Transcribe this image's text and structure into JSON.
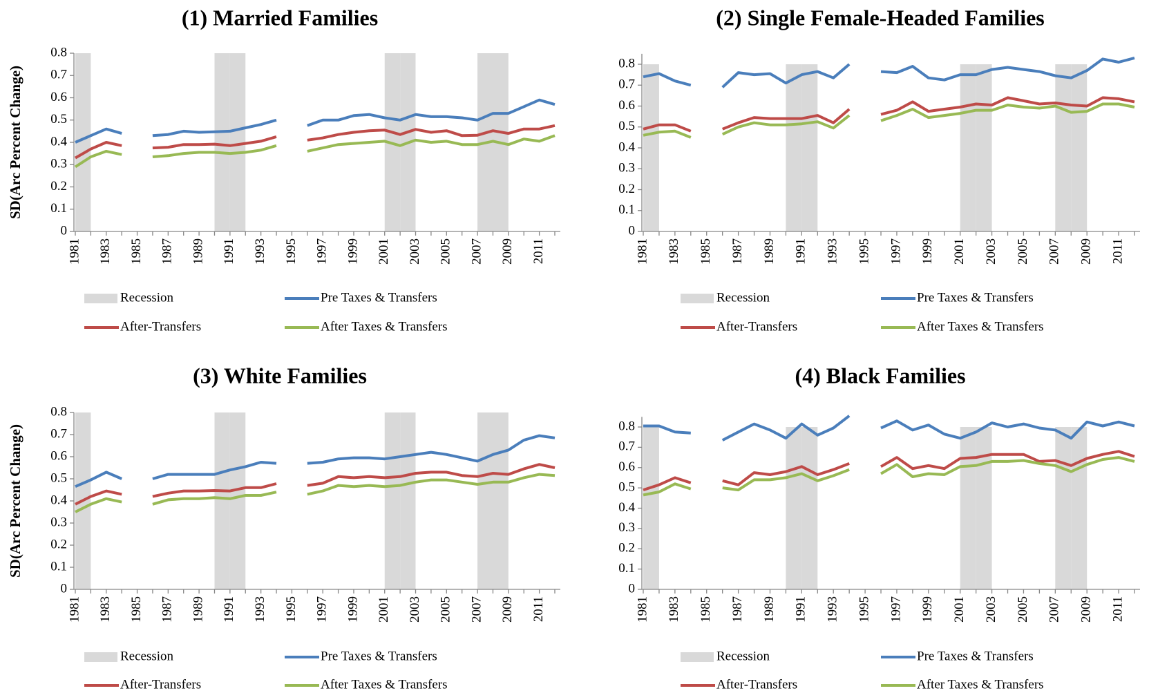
{
  "chart_data": [
    {
      "type": "line",
      "title": "(1) Married Families",
      "y_label": "SD(Arc Percent Change)",
      "categories": [
        "1981",
        null,
        "1983",
        null,
        "1985",
        null,
        "1987",
        null,
        "1989",
        null,
        "1991",
        null,
        "1993",
        null,
        "1995",
        null,
        "1997",
        null,
        "1999",
        null,
        "2001",
        null,
        "2003",
        null,
        "2005",
        null,
        "2007",
        null,
        "2009",
        null,
        "2011",
        null
      ],
      "ylim": [
        0,
        0.8
      ],
      "yticks": [
        0,
        0.1,
        0.2,
        0.3,
        0.4,
        0.5,
        0.6,
        0.7,
        0.8
      ],
      "series": [
        {
          "name": "Recession",
          "type": "bar",
          "color": "#d9d9d9",
          "values": [
            0.8,
            null,
            null,
            null,
            null,
            null,
            null,
            null,
            null,
            0.8,
            0.8,
            null,
            null,
            null,
            null,
            null,
            null,
            null,
            null,
            null,
            0.8,
            0.8,
            null,
            null,
            null,
            null,
            0.8,
            0.8,
            null,
            null,
            null,
            null
          ]
        },
        {
          "name": "Pre Taxes & Transfers",
          "color": "#4a7ebb",
          "values": [
            0.4,
            0.43,
            0.46,
            0.44,
            null,
            0.43,
            0.435,
            0.45,
            0.445,
            0.447,
            0.45,
            0.465,
            0.48,
            0.5,
            null,
            0.475,
            0.5,
            0.5,
            0.52,
            0.525,
            0.51,
            0.5,
            0.525,
            0.515,
            0.515,
            0.51,
            0.5,
            0.53,
            0.53,
            0.56,
            0.59,
            0.57
          ]
        },
        {
          "name": "After-Transfers",
          "color": "#be4b48",
          "values": [
            0.33,
            0.37,
            0.4,
            0.385,
            null,
            0.375,
            0.378,
            0.39,
            0.39,
            0.392,
            0.385,
            0.395,
            0.405,
            0.425,
            null,
            0.41,
            0.42,
            0.435,
            0.445,
            0.452,
            0.455,
            0.435,
            0.458,
            0.445,
            0.452,
            0.43,
            0.432,
            0.452,
            0.44,
            0.46,
            0.46,
            0.475
          ]
        },
        {
          "name": "After Taxes & Transfers",
          "color": "#98b954",
          "values": [
            0.29,
            0.335,
            0.36,
            0.345,
            null,
            0.335,
            0.34,
            0.35,
            0.355,
            0.355,
            0.35,
            0.355,
            0.365,
            0.385,
            null,
            0.36,
            0.375,
            0.39,
            0.395,
            0.4,
            0.405,
            0.385,
            0.41,
            0.4,
            0.405,
            0.39,
            0.39,
            0.405,
            0.39,
            0.415,
            0.405,
            0.43
          ]
        }
      ]
    },
    {
      "type": "line",
      "title": "(2) Single Female-Headed Families",
      "categories": [
        "1981",
        null,
        "1983",
        null,
        "1985",
        null,
        "1987",
        null,
        "1989",
        null,
        "1991",
        null,
        "1993",
        null,
        "1995",
        null,
        "1997",
        null,
        "1999",
        null,
        "2001",
        null,
        "2003",
        null,
        "2005",
        null,
        "2007",
        null,
        "2009",
        null,
        "2011",
        null
      ],
      "ylim": [
        0,
        0.85
      ],
      "yticks": [
        0,
        0.1,
        0.2,
        0.3,
        0.4,
        0.5,
        0.6,
        0.7,
        0.8
      ],
      "series": [
        {
          "name": "Recession",
          "type": "bar",
          "color": "#d9d9d9",
          "values": [
            0.8,
            null,
            null,
            null,
            null,
            null,
            null,
            null,
            null,
            0.8,
            0.8,
            null,
            null,
            null,
            null,
            null,
            null,
            null,
            null,
            null,
            0.8,
            0.8,
            null,
            null,
            null,
            null,
            0.8,
            0.8,
            null,
            null,
            null,
            null
          ]
        },
        {
          "name": "Pre Taxes & Transfers",
          "color": "#4a7ebb",
          "values": [
            0.74,
            0.755,
            0.72,
            0.7,
            null,
            0.69,
            0.76,
            0.75,
            0.755,
            0.71,
            0.75,
            0.765,
            0.735,
            0.8,
            null,
            0.765,
            0.76,
            0.79,
            0.735,
            0.725,
            0.75,
            0.75,
            0.775,
            0.785,
            0.775,
            0.765,
            0.745,
            0.735,
            0.77,
            0.825,
            0.81,
            0.83
          ]
        },
        {
          "name": "After-Transfers",
          "color": "#be4b48",
          "values": [
            0.49,
            0.51,
            0.51,
            0.48,
            null,
            0.49,
            0.52,
            0.545,
            0.54,
            0.54,
            0.54,
            0.555,
            0.52,
            0.585,
            null,
            0.56,
            0.58,
            0.62,
            0.575,
            0.585,
            0.595,
            0.61,
            0.605,
            0.64,
            0.625,
            0.61,
            0.615,
            0.605,
            0.6,
            0.64,
            0.635,
            0.62
          ]
        },
        {
          "name": "After Taxes & Transfers",
          "color": "#98b954",
          "values": [
            0.46,
            0.475,
            0.48,
            0.45,
            null,
            0.465,
            0.5,
            0.52,
            0.51,
            0.51,
            0.515,
            0.525,
            0.495,
            0.555,
            null,
            0.53,
            0.555,
            0.585,
            0.545,
            0.555,
            0.565,
            0.58,
            0.58,
            0.605,
            0.595,
            0.59,
            0.6,
            0.57,
            0.575,
            0.61,
            0.61,
            0.595
          ]
        }
      ]
    },
    {
      "type": "line",
      "title": "(3) White Families",
      "y_label": "SD(Arc Percent Change)",
      "categories": [
        "1981",
        null,
        "1983",
        null,
        "1985",
        null,
        "1987",
        null,
        "1989",
        null,
        "1991",
        null,
        "1993",
        null,
        "1995",
        null,
        "1997",
        null,
        "1999",
        null,
        "2001",
        null,
        "2003",
        null,
        "2005",
        null,
        "2007",
        null,
        "2009",
        null,
        "2011",
        null
      ],
      "ylim": [
        0,
        0.8
      ],
      "yticks": [
        0,
        0.1,
        0.2,
        0.3,
        0.4,
        0.5,
        0.6,
        0.7,
        0.8
      ],
      "series": [
        {
          "name": "Recession",
          "type": "bar",
          "color": "#d9d9d9",
          "values": [
            0.8,
            null,
            null,
            null,
            null,
            null,
            null,
            null,
            null,
            0.8,
            0.8,
            null,
            null,
            null,
            null,
            null,
            null,
            null,
            null,
            null,
            0.8,
            0.8,
            null,
            null,
            null,
            null,
            0.8,
            0.8,
            null,
            null,
            null,
            null
          ]
        },
        {
          "name": "Pre Taxes & Transfers",
          "color": "#4a7ebb",
          "values": [
            0.465,
            0.495,
            0.53,
            0.5,
            null,
            0.5,
            0.52,
            0.52,
            0.52,
            0.52,
            0.54,
            0.555,
            0.575,
            0.57,
            null,
            0.57,
            0.575,
            0.59,
            0.595,
            0.595,
            0.59,
            0.6,
            0.61,
            0.62,
            0.61,
            0.595,
            0.58,
            0.61,
            0.63,
            0.675,
            0.695,
            0.685
          ]
        },
        {
          "name": "After-Transfers",
          "color": "#be4b48",
          "values": [
            0.385,
            0.42,
            0.445,
            0.43,
            null,
            0.42,
            0.435,
            0.445,
            0.445,
            0.447,
            0.445,
            0.46,
            0.46,
            0.478,
            null,
            0.47,
            0.48,
            0.51,
            0.505,
            0.51,
            0.505,
            0.51,
            0.525,
            0.53,
            0.53,
            0.515,
            0.51,
            0.525,
            0.52,
            0.545,
            0.565,
            0.55
          ]
        },
        {
          "name": "After Taxes & Transfers",
          "color": "#98b954",
          "values": [
            0.35,
            0.385,
            0.41,
            0.395,
            null,
            0.385,
            0.405,
            0.41,
            0.41,
            0.415,
            0.41,
            0.425,
            0.425,
            0.44,
            null,
            0.43,
            0.445,
            0.47,
            0.465,
            0.47,
            0.465,
            0.47,
            0.485,
            0.495,
            0.495,
            0.485,
            0.475,
            0.485,
            0.485,
            0.505,
            0.52,
            0.515
          ]
        }
      ]
    },
    {
      "type": "line",
      "title": "(4) Black Families",
      "categories": [
        "1981",
        null,
        "1983",
        null,
        "1985",
        null,
        "1987",
        null,
        "1989",
        null,
        "1991",
        null,
        "1993",
        null,
        "1995",
        null,
        "1997",
        null,
        "1999",
        null,
        "2001",
        null,
        "2003",
        null,
        "2005",
        null,
        "2007",
        null,
        "2009",
        null,
        "2011",
        null
      ],
      "ylim": [
        0,
        0.85
      ],
      "yticks": [
        0,
        0.1,
        0.2,
        0.3,
        0.4,
        0.5,
        0.6,
        0.7,
        0.8
      ],
      "series": [
        {
          "name": "Recession",
          "type": "bar",
          "color": "#d9d9d9",
          "values": [
            0.8,
            null,
            null,
            null,
            null,
            null,
            null,
            null,
            null,
            0.8,
            0.8,
            null,
            null,
            null,
            null,
            null,
            null,
            null,
            null,
            null,
            0.8,
            0.8,
            null,
            null,
            null,
            null,
            0.8,
            0.8,
            null,
            null,
            null,
            null
          ]
        },
        {
          "name": "Pre Taxes & Transfers",
          "color": "#4a7ebb",
          "values": [
            0.805,
            0.805,
            0.775,
            0.77,
            null,
            0.735,
            0.775,
            0.815,
            0.785,
            0.745,
            0.815,
            0.76,
            0.795,
            0.855,
            null,
            0.795,
            0.83,
            0.785,
            0.81,
            0.765,
            0.745,
            0.775,
            0.82,
            0.8,
            0.815,
            0.795,
            0.785,
            0.745,
            0.825,
            0.805,
            0.825,
            0.805
          ]
        },
        {
          "name": "After-Transfers",
          "color": "#be4b48",
          "values": [
            0.49,
            0.515,
            0.55,
            0.525,
            null,
            0.535,
            0.515,
            0.575,
            0.565,
            0.58,
            0.605,
            0.565,
            0.59,
            0.62,
            null,
            0.605,
            0.65,
            0.595,
            0.61,
            0.595,
            0.645,
            0.65,
            0.665,
            0.665,
            0.665,
            0.63,
            0.635,
            0.61,
            0.645,
            0.665,
            0.68,
            0.655
          ]
        },
        {
          "name": "After Taxes & Transfers",
          "color": "#98b954",
          "values": [
            0.465,
            0.48,
            0.52,
            0.495,
            null,
            0.5,
            0.49,
            0.54,
            0.54,
            0.55,
            0.57,
            0.535,
            0.56,
            0.59,
            null,
            0.57,
            0.615,
            0.555,
            0.57,
            0.565,
            0.605,
            0.61,
            0.63,
            0.63,
            0.635,
            0.62,
            0.61,
            0.58,
            0.615,
            0.64,
            0.65,
            0.63
          ]
        }
      ]
    }
  ]
}
